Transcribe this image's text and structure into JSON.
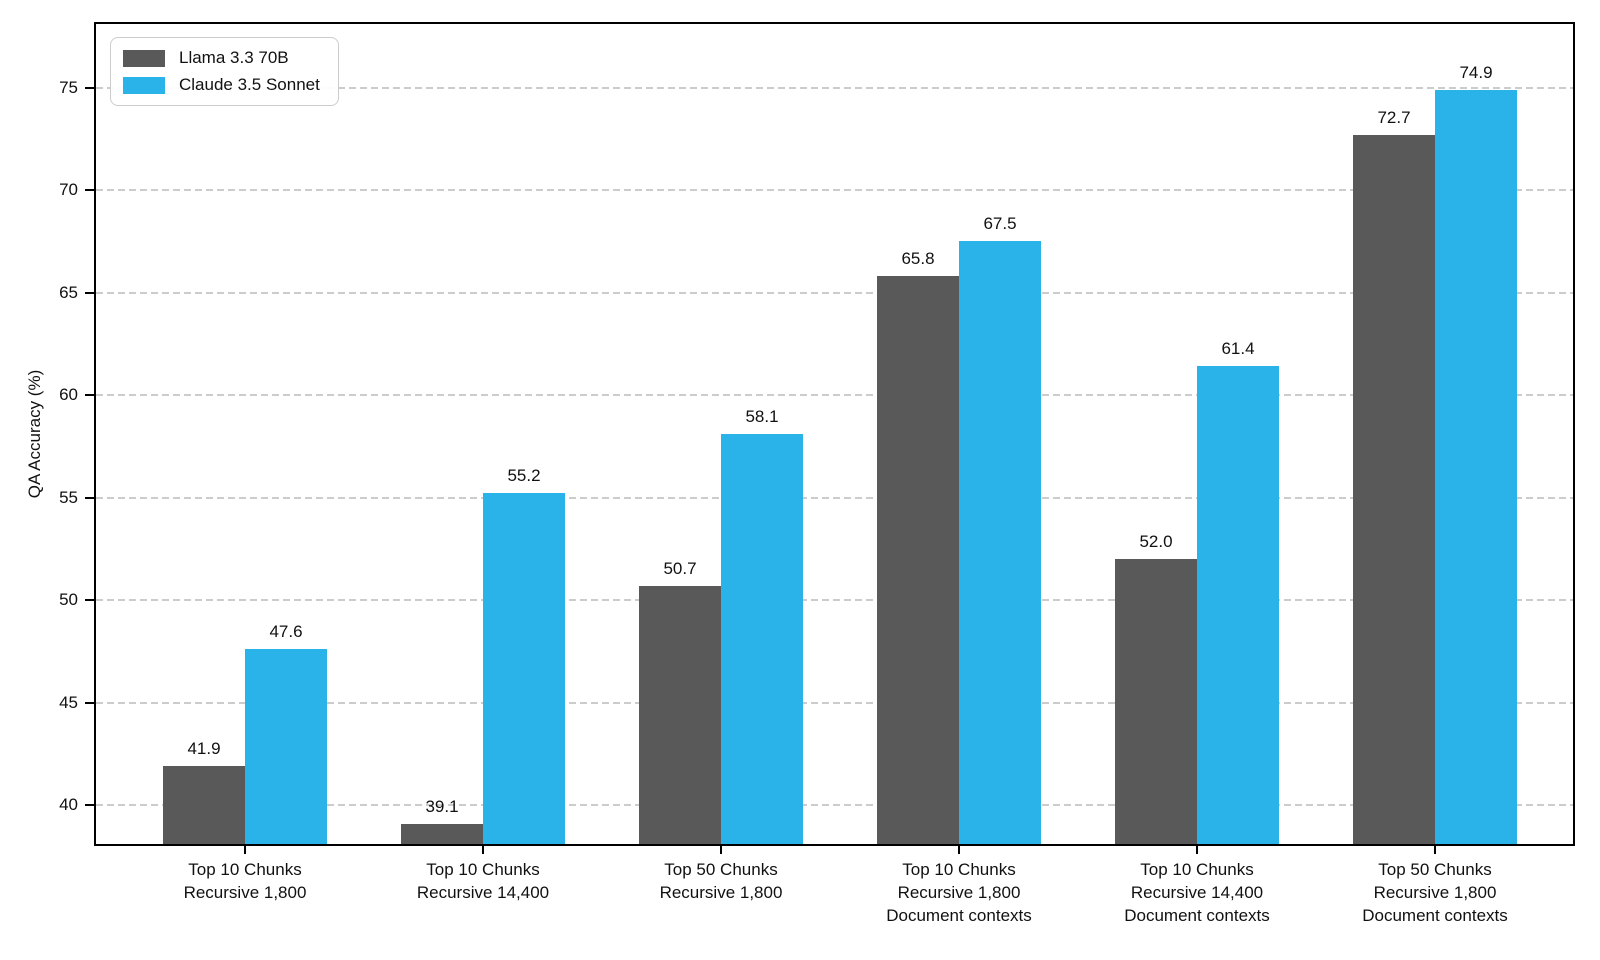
{
  "chart_data": {
    "type": "bar",
    "title": "",
    "xlabel": "",
    "ylabel": "QA Accuracy (%)",
    "categories": [
      "Top 10 Chunks\nRecursive 1,800",
      "Top 10 Chunks\nRecursive 14,400",
      "Top 50 Chunks\nRecursive 1,800",
      "Top 10 Chunks\nRecursive 1,800\nDocument contexts",
      "Top 10 Chunks\nRecursive 14,400\nDocument contexts",
      "Top 50 Chunks\nRecursive 1,800\nDocument contexts"
    ],
    "series": [
      {
        "name": "Llama 3.3 70B",
        "color": "#595959",
        "values": [
          41.9,
          39.1,
          50.7,
          65.8,
          52.0,
          72.7
        ]
      },
      {
        "name": "Claude 3.5 Sonnet",
        "color": "#29B3E8",
        "values": [
          47.6,
          55.2,
          58.1,
          67.5,
          61.4,
          74.9
        ]
      }
    ],
    "yticks": [
      40,
      45,
      50,
      55,
      60,
      65,
      70,
      75
    ],
    "ylim": [
      38.1,
      78.1
    ],
    "grid": {
      "axis": "y",
      "style": "dashed",
      "color": "#cccccc"
    },
    "legend_position": "upper-left",
    "value_label_decimals": 1
  }
}
